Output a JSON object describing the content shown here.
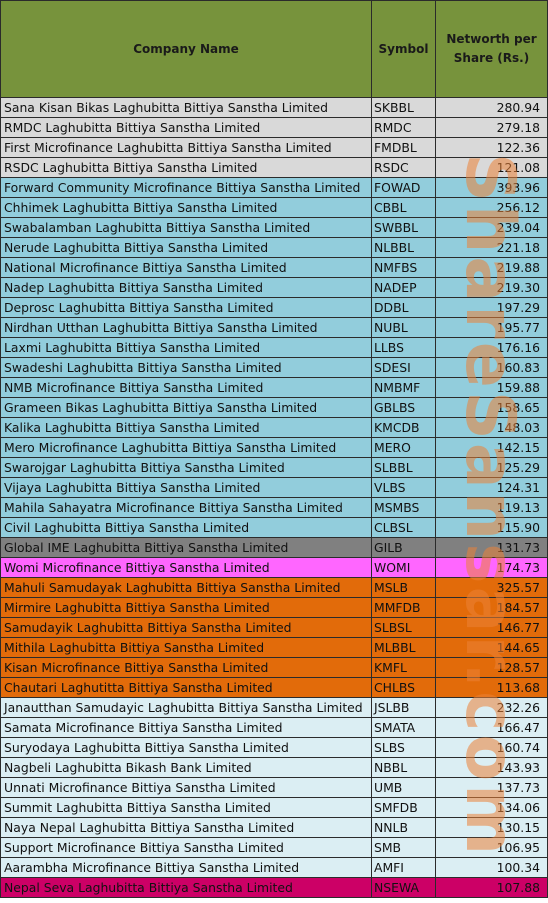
{
  "header": {
    "company": "Company Name",
    "symbol": "Symbol",
    "networth": "Networth per Share (Rs.)"
  },
  "groups": {
    "grey": "#d9d9d9",
    "blue": "#92cddc",
    "darkgrey": "#808080",
    "magenta": "#ff66ff",
    "orange": "#e26b0a",
    "lightblue": "#dbeef3",
    "crimson": "#cc0066"
  },
  "watermark": "ShareSansar.com",
  "rows": [
    {
      "company": "Sana Kisan Bikas Laghubitta Bittiya Sanstha Limited",
      "symbol": "SKBBL",
      "value": "280.94",
      "color": "#d9d9d9"
    },
    {
      "company": "RMDC Laghubitta Bittiya Sanstha Limited",
      "symbol": "RMDC",
      "value": "279.18",
      "color": "#d9d9d9"
    },
    {
      "company": "First Microfinance Laghubitta Bittiya Sanstha Limited",
      "symbol": "FMDBL",
      "value": "122.36",
      "color": "#d9d9d9"
    },
    {
      "company": "RSDC Laghubitta Bittiya Sanstha Limited",
      "symbol": "RSDC",
      "value": "121.08",
      "color": "#d9d9d9"
    },
    {
      "company": "Forward Community Microfinance Bittiya Sanstha Limited",
      "symbol": "FOWAD",
      "value": "393.96",
      "color": "#92cddc"
    },
    {
      "company": "Chhimek Laghubitta Bittiya Sanstha Limited",
      "symbol": "CBBL",
      "value": "256.12",
      "color": "#92cddc"
    },
    {
      "company": "Swabalamban Laghubitta Bittiya Sanstha Limited",
      "symbol": "SWBBL",
      "value": "239.04",
      "color": "#92cddc"
    },
    {
      "company": "Nerude Laghubitta Bittiya Sanstha Limited",
      "symbol": "NLBBL",
      "value": "221.18",
      "color": "#92cddc"
    },
    {
      "company": "National Microfinance Bittiya Sanstha Limited",
      "symbol": "NMFBS",
      "value": "219.88",
      "color": "#92cddc"
    },
    {
      "company": "Nadep Laghubitta Bittiya Sanstha Limited",
      "symbol": "NADEP",
      "value": "219.30",
      "color": "#92cddc"
    },
    {
      "company": "Deprosc Laghubitta Bittiya Sanstha Limited",
      "symbol": "DDBL",
      "value": "197.29",
      "color": "#92cddc"
    },
    {
      "company": "Nirdhan Utthan Laghubitta Bittiya Sanstha Limited",
      "symbol": "NUBL",
      "value": "195.77",
      "color": "#92cddc"
    },
    {
      "company": "Laxmi Laghubitta Bittiya Sanstha Limited",
      "symbol": "LLBS",
      "value": "176.16",
      "color": "#92cddc"
    },
    {
      "company": "Swadeshi Laghubitta Bittiya Sanstha Limited",
      "symbol": "SDESI",
      "value": "160.83",
      "color": "#92cddc"
    },
    {
      "company": "NMB Microfinance Bittiya Sanstha Limited",
      "symbol": "NMBMF",
      "value": "159.88",
      "color": "#92cddc"
    },
    {
      "company": "Grameen Bikas Laghubitta Bittiya Sanstha Limited",
      "symbol": "GBLBS",
      "value": "158.65",
      "color": "#92cddc"
    },
    {
      "company": "Kalika Laghubitta Bittiya Sanstha Limited",
      "symbol": "KMCDB",
      "value": "148.03",
      "color": "#92cddc"
    },
    {
      "company": "Mero Microfinance Laghubitta Bittiya Sanstha Limited",
      "symbol": "MERO",
      "value": "142.15",
      "color": "#92cddc"
    },
    {
      "company": "Swarojgar Laghubitta Bittiya Sanstha Limited",
      "symbol": "SLBBL",
      "value": "125.29",
      "color": "#92cddc"
    },
    {
      "company": "Vijaya Laghubitta Bittiya Sanstha Limited",
      "symbol": "VLBS",
      "value": "124.31",
      "color": "#92cddc"
    },
    {
      "company": "Mahila Sahayatra Microfinance Bittiya Sanstha Limited",
      "symbol": "MSMBS",
      "value": "119.13",
      "color": "#92cddc"
    },
    {
      "company": "Civil Laghubitta Bittiya Sanstha Limited",
      "symbol": "CLBSL",
      "value": "115.90",
      "color": "#92cddc"
    },
    {
      "company": "Global IME Laghubitta Bittiya Sanstha Limited",
      "symbol": "GILB",
      "value": "131.73",
      "color": "#808080"
    },
    {
      "company": "Womi Microfinance Bittiya Sanstha Limited",
      "symbol": "WOMI",
      "value": "174.73",
      "color": "#ff66ff"
    },
    {
      "company": "Mahuli Samudayak Laghubitta Bittiya Sanstha Limited",
      "symbol": "MSLB",
      "value": "325.57",
      "color": "#e26b0a"
    },
    {
      "company": "Mirmire Laghubitta Bittiya Sanstha Limited",
      "symbol": "MMFDB",
      "value": "184.57",
      "color": "#e26b0a"
    },
    {
      "company": "Samudayik Laghubitta Bittiya Sanstha Limited",
      "symbol": "SLBSL",
      "value": "146.77",
      "color": "#e26b0a"
    },
    {
      "company": "Mithila Laghubitta Bittiya Sanstha Limited",
      "symbol": "MLBBL",
      "value": "144.65",
      "color": "#e26b0a"
    },
    {
      "company": "Kisan Microfinance Bittiya Sanstha Limited",
      "symbol": "KMFL",
      "value": "128.57",
      "color": "#e26b0a"
    },
    {
      "company": "Chautari Laghutitta Bittiya Sanstha Limited",
      "symbol": "CHLBS",
      "value": "113.68",
      "color": "#e26b0a"
    },
    {
      "company": "Janautthan Samudayic Laghubitta Bittiya Sanstha Limited",
      "symbol": "JSLBB",
      "value": "232.26",
      "color": "#dbeef3"
    },
    {
      "company": "Samata Microfinance Bittiya Sanstha Limited",
      "symbol": "SMATA",
      "value": "166.47",
      "color": "#dbeef3"
    },
    {
      "company": "Suryodaya Laghubitta Bittiya Sanstha Limited",
      "symbol": "SLBS",
      "value": "160.74",
      "color": "#dbeef3"
    },
    {
      "company": "Nagbeli Laghubitta Bikash Bank Limited",
      "symbol": "NBBL",
      "value": "143.93",
      "color": "#dbeef3"
    },
    {
      "company": "Unnati Microfinance Bittiya Sanstha Limited",
      "symbol": "UMB",
      "value": "137.73",
      "color": "#dbeef3"
    },
    {
      "company": "Summit Laghubitta Bittiya Sanstha Limited",
      "symbol": "SMFDB",
      "value": "134.06",
      "color": "#dbeef3"
    },
    {
      "company": "Naya Nepal Laghubitta Bittiya Sanstha Limited",
      "symbol": "NNLB",
      "value": "130.15",
      "color": "#dbeef3"
    },
    {
      "company": "Support Microfinance Bittiya Sanstha Limited",
      "symbol": "SMB",
      "value": "106.95",
      "color": "#dbeef3"
    },
    {
      "company": "Aarambha Microfinance Bittiya Sanstha Limited",
      "symbol": "AMFI",
      "value": "100.34",
      "color": "#dbeef3"
    },
    {
      "company": "Nepal Seva Laghubitta Bittiya Sanstha Limited",
      "symbol": "NSEWA",
      "value": "107.88",
      "color": "#cc0066"
    }
  ]
}
